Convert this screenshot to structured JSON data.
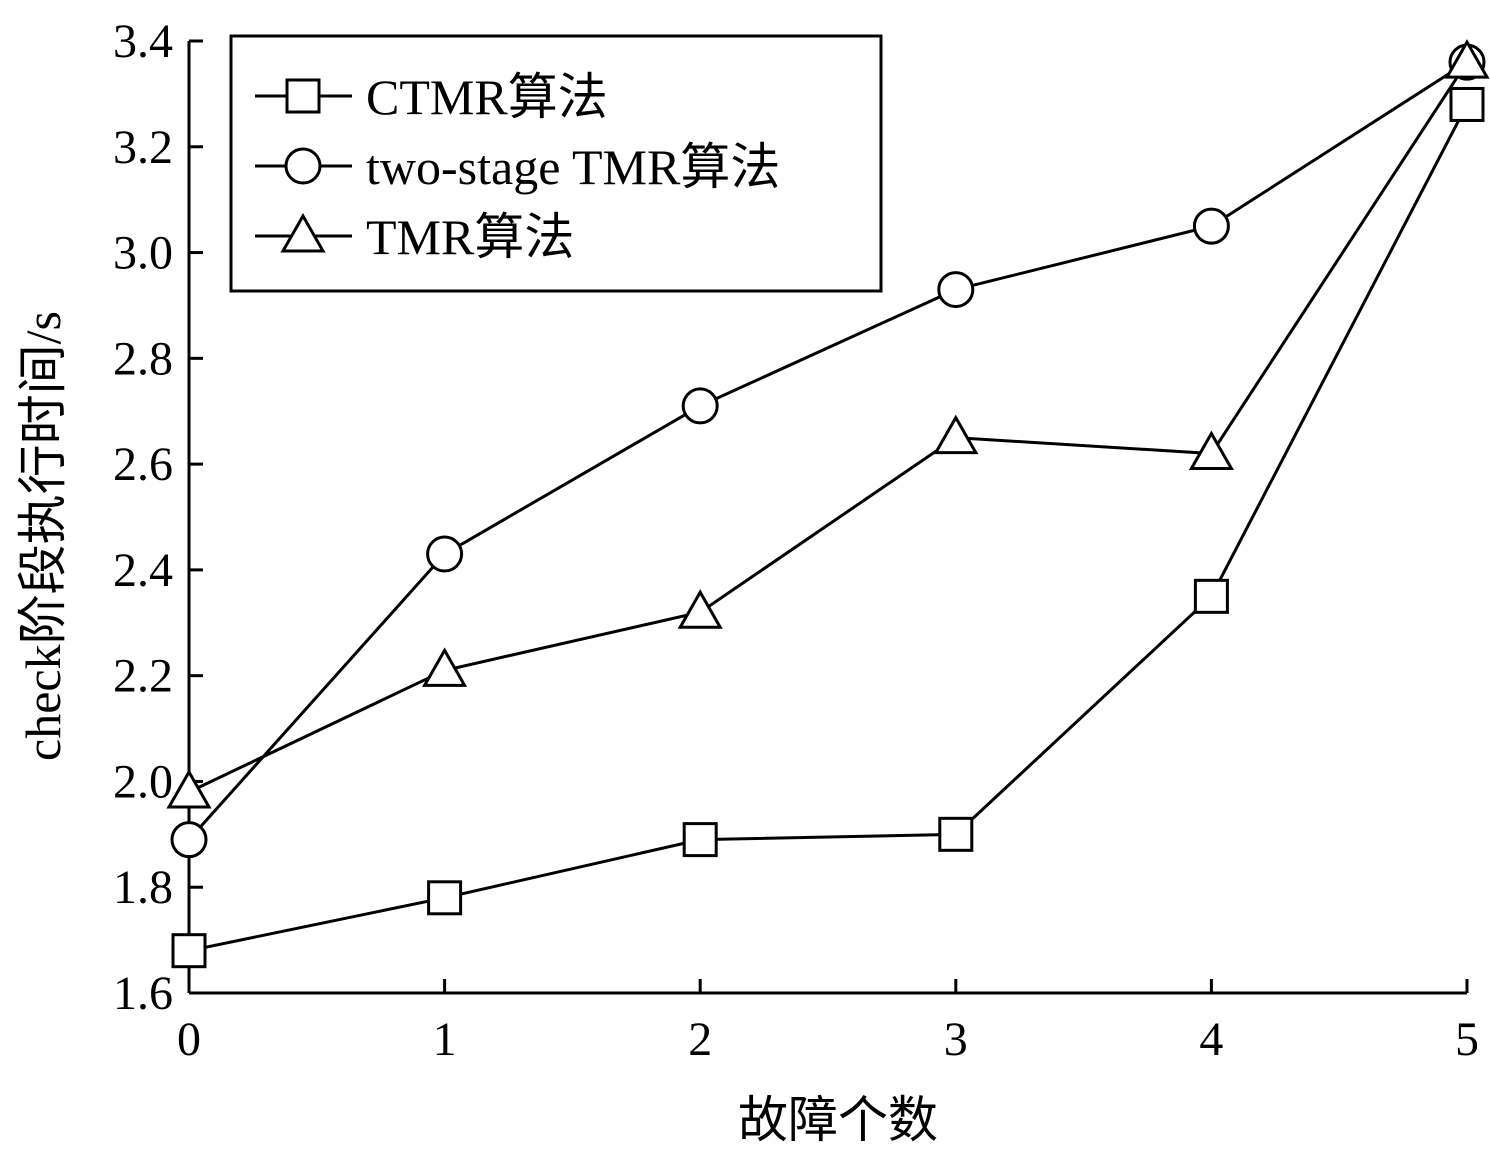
{
  "chart_data": {
    "type": "line",
    "title": "",
    "xlabel": "故障个数",
    "ylabel": "check阶段执行时间/s",
    "xlim": [
      0,
      5
    ],
    "ylim": [
      1.6,
      3.4
    ],
    "x": [
      0,
      1,
      2,
      3,
      4,
      5
    ],
    "x_ticks": [
      "0",
      "1",
      "2",
      "3",
      "4",
      "5"
    ],
    "y_ticks": [
      "1.6",
      "1.8",
      "2.0",
      "2.2",
      "2.4",
      "2.6",
      "2.8",
      "3.0",
      "3.2",
      "3.4"
    ],
    "grid": false,
    "legend_position": "top-left",
    "colors": {
      "line": "#000000",
      "marker_fill": "#ffffff"
    },
    "series": [
      {
        "name": "CTMR算法",
        "marker": "square",
        "values": [
          1.68,
          1.78,
          1.89,
          1.9,
          2.35,
          3.28
        ]
      },
      {
        "name": "two-stage TMR算法",
        "marker": "circle",
        "values": [
          1.89,
          2.43,
          2.71,
          2.93,
          3.05,
          3.36
        ]
      },
      {
        "name": "TMR算法",
        "marker": "triangle",
        "values": [
          1.98,
          2.21,
          2.32,
          2.65,
          2.62,
          3.36
        ]
      }
    ]
  }
}
